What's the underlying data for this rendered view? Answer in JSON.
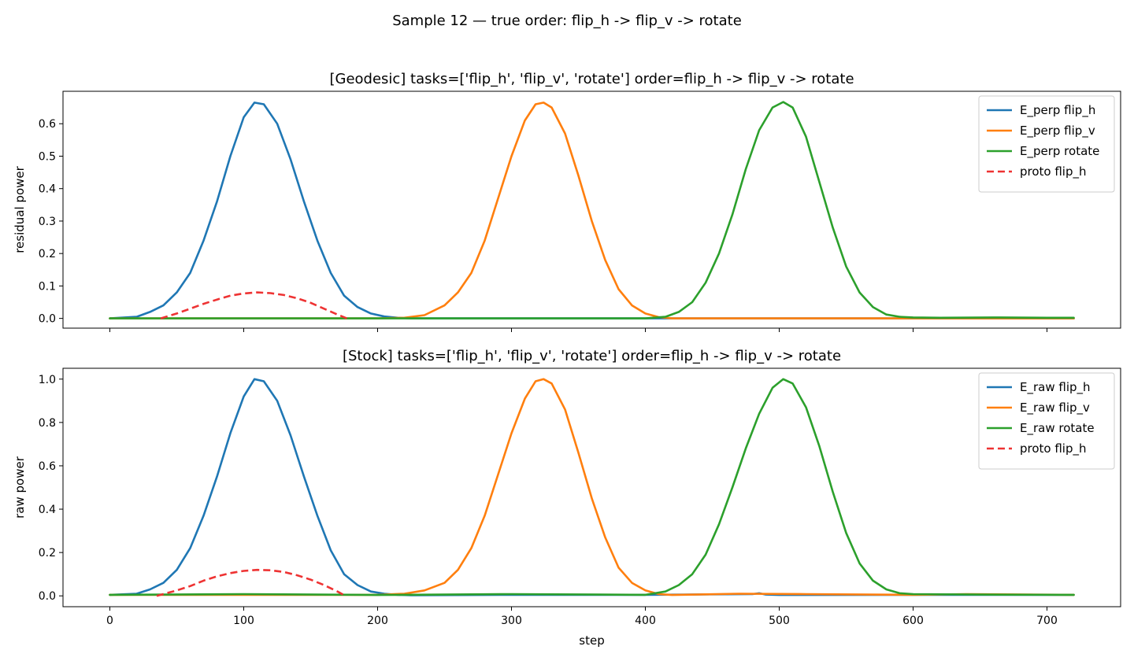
{
  "figure": {
    "suptitle": "Sample 12 — true order: flip_h -> flip_v -> rotate"
  },
  "chart_data": [
    {
      "type": "line",
      "title": "[Geodesic] tasks=['flip_h', 'flip_v', 'rotate'] order=flip_h -> flip_v -> rotate",
      "xlabel": "",
      "ylabel": "residual power",
      "xlim": [
        -35,
        755
      ],
      "ylim": [
        -0.03,
        0.7
      ],
      "xticks": [
        0,
        100,
        200,
        300,
        400,
        500,
        600,
        700
      ],
      "show_xtick_labels": false,
      "yticks": [
        0.0,
        0.1,
        0.2,
        0.3,
        0.4,
        0.5,
        0.6
      ],
      "ytick_labels": [
        "0.0",
        "0.1",
        "0.2",
        "0.3",
        "0.4",
        "0.5",
        "0.6"
      ],
      "grid": false,
      "legend": "top-right",
      "series": [
        {
          "name": "E_perp flip_h",
          "color": "#1f77b4",
          "style": "solid",
          "x": [
            0,
            20,
            30,
            40,
            50,
            60,
            70,
            80,
            90,
            100,
            108,
            115,
            125,
            135,
            145,
            155,
            165,
            175,
            185,
            195,
            205,
            215,
            225,
            240,
            400,
            500,
            600,
            720
          ],
          "y": [
            0.0,
            0.005,
            0.02,
            0.04,
            0.08,
            0.14,
            0.24,
            0.36,
            0.5,
            0.62,
            0.665,
            0.66,
            0.6,
            0.49,
            0.36,
            0.24,
            0.14,
            0.07,
            0.035,
            0.015,
            0.006,
            0.002,
            0.0,
            0.0,
            0.0,
            0.0,
            0.0,
            0.0
          ]
        },
        {
          "name": "E_perp flip_v",
          "color": "#ff7f0e",
          "style": "solid",
          "x": [
            0,
            200,
            220,
            235,
            250,
            260,
            270,
            280,
            290,
            300,
            310,
            318,
            324,
            330,
            340,
            350,
            360,
            370,
            380,
            390,
            400,
            410,
            420,
            600,
            720
          ],
          "y": [
            0.0,
            0.0,
            0.002,
            0.01,
            0.04,
            0.08,
            0.14,
            0.24,
            0.37,
            0.5,
            0.61,
            0.66,
            0.665,
            0.65,
            0.57,
            0.44,
            0.3,
            0.18,
            0.09,
            0.04,
            0.015,
            0.004,
            0.0,
            0.0,
            0.0
          ]
        },
        {
          "name": "E_perp rotate",
          "color": "#2ca02c",
          "style": "solid",
          "x": [
            0,
            400,
            415,
            425,
            435,
            445,
            455,
            465,
            475,
            485,
            495,
            503,
            510,
            520,
            530,
            540,
            550,
            560,
            570,
            580,
            590,
            600,
            620,
            660,
            700,
            720
          ],
          "y": [
            0.0,
            0.0,
            0.005,
            0.02,
            0.05,
            0.11,
            0.2,
            0.32,
            0.46,
            0.58,
            0.65,
            0.667,
            0.65,
            0.56,
            0.42,
            0.28,
            0.16,
            0.08,
            0.035,
            0.012,
            0.005,
            0.003,
            0.002,
            0.003,
            0.002,
            0.002
          ]
        },
        {
          "name": "proto flip_h",
          "color": "#ee3333",
          "style": "dashed",
          "x": [
            38,
            50,
            60,
            70,
            80,
            90,
            100,
            110,
            120,
            130,
            140,
            150,
            160,
            170,
            177
          ],
          "y": [
            0.0,
            0.015,
            0.03,
            0.045,
            0.058,
            0.07,
            0.077,
            0.08,
            0.078,
            0.072,
            0.062,
            0.048,
            0.03,
            0.012,
            0.0
          ]
        }
      ]
    },
    {
      "type": "line",
      "title": "[Stock] tasks=['flip_h', 'flip_v', 'rotate'] order=flip_h -> flip_v -> rotate",
      "xlabel": "step",
      "ylabel": "raw power",
      "xlim": [
        -35,
        755
      ],
      "ylim": [
        -0.05,
        1.05
      ],
      "xticks": [
        0,
        100,
        200,
        300,
        400,
        500,
        600,
        700
      ],
      "show_xtick_labels": true,
      "yticks": [
        0.0,
        0.2,
        0.4,
        0.6,
        0.8,
        1.0
      ],
      "ytick_labels": [
        "0.0",
        "0.2",
        "0.4",
        "0.6",
        "0.8",
        "1.0"
      ],
      "grid": false,
      "legend": "top-right",
      "series": [
        {
          "name": "E_raw flip_h",
          "color": "#1f77b4",
          "style": "solid",
          "x": [
            0,
            20,
            30,
            40,
            50,
            60,
            70,
            80,
            90,
            100,
            108,
            115,
            125,
            135,
            145,
            155,
            165,
            175,
            185,
            195,
            205,
            215,
            225,
            300,
            400,
            480,
            485,
            490,
            500,
            600,
            720
          ],
          "y": [
            0.005,
            0.01,
            0.03,
            0.06,
            0.12,
            0.22,
            0.37,
            0.55,
            0.75,
            0.92,
            1.0,
            0.99,
            0.9,
            0.74,
            0.55,
            0.37,
            0.21,
            0.1,
            0.05,
            0.02,
            0.01,
            0.005,
            0.003,
            0.005,
            0.005,
            0.008,
            0.012,
            0.006,
            0.004,
            0.005,
            0.005
          ]
        },
        {
          "name": "E_raw flip_v",
          "color": "#ff7f0e",
          "style": "solid",
          "x": [
            0,
            200,
            220,
            235,
            250,
            260,
            270,
            280,
            290,
            300,
            310,
            318,
            324,
            330,
            340,
            350,
            360,
            370,
            380,
            390,
            400,
            410,
            420,
            470,
            520,
            600,
            640,
            720
          ],
          "y": [
            0.005,
            0.005,
            0.01,
            0.025,
            0.06,
            0.12,
            0.22,
            0.37,
            0.56,
            0.75,
            0.91,
            0.99,
            1.0,
            0.98,
            0.86,
            0.66,
            0.45,
            0.27,
            0.13,
            0.06,
            0.025,
            0.008,
            0.004,
            0.01,
            0.008,
            0.005,
            0.008,
            0.005
          ]
        },
        {
          "name": "E_raw rotate",
          "color": "#2ca02c",
          "style": "solid",
          "x": [
            0,
            100,
            200,
            300,
            400,
            415,
            425,
            435,
            445,
            455,
            465,
            475,
            485,
            495,
            503,
            510,
            520,
            530,
            540,
            550,
            560,
            570,
            580,
            590,
            600,
            650,
            720
          ],
          "y": [
            0.005,
            0.008,
            0.004,
            0.008,
            0.005,
            0.02,
            0.05,
            0.1,
            0.19,
            0.33,
            0.5,
            0.68,
            0.84,
            0.96,
            1.0,
            0.98,
            0.87,
            0.69,
            0.48,
            0.29,
            0.15,
            0.07,
            0.03,
            0.012,
            0.008,
            0.006,
            0.005
          ]
        },
        {
          "name": "proto flip_h",
          "color": "#ee3333",
          "style": "dashed",
          "x": [
            35,
            50,
            60,
            70,
            80,
            90,
            100,
            110,
            120,
            130,
            140,
            150,
            160,
            170,
            176
          ],
          "y": [
            0.0,
            0.025,
            0.045,
            0.07,
            0.09,
            0.105,
            0.115,
            0.12,
            0.118,
            0.11,
            0.095,
            0.075,
            0.05,
            0.02,
            0.0
          ]
        }
      ]
    }
  ]
}
